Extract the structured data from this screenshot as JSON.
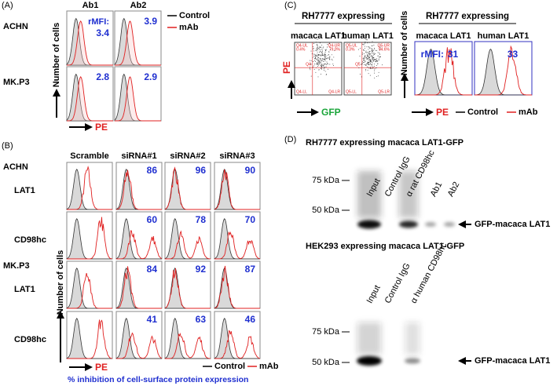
{
  "panel_a": {
    "label": "(A)",
    "columns": [
      "Ab1",
      "Ab2"
    ],
    "rows": [
      "ACHN",
      "MK.P3"
    ],
    "rmfi_label": "rMFI:",
    "values": [
      [
        "3.4",
        "3.9"
      ],
      [
        "2.8",
        "2.9"
      ]
    ],
    "y_axis": "Number of cells",
    "x_axis": "PE",
    "legend": [
      "Control",
      "mAb"
    ]
  },
  "panel_b": {
    "label": "(B)",
    "columns": [
      "Scramble",
      "siRNA#1",
      "siRNA#2",
      "siRNA#3"
    ],
    "groups": [
      {
        "name": "ACHN",
        "rows": [
          {
            "name": "LAT1",
            "values": [
              "86",
              "96",
              "90"
            ]
          },
          {
            "name": "CD98hc",
            "values": [
              "60",
              "78",
              "70"
            ]
          }
        ]
      },
      {
        "name": "MK.P3",
        "rows": [
          {
            "name": "LAT1",
            "values": [
              "84",
              "92",
              "87"
            ]
          },
          {
            "name": "CD98hc",
            "values": [
              "41",
              "63",
              "46"
            ]
          }
        ]
      }
    ],
    "y_axis": "Number of cells",
    "x_axis": "PE",
    "legend": [
      "Control",
      "mAb"
    ],
    "footnote": "% inhibition of cell-surface protein expression"
  },
  "panel_c": {
    "label": "(C)",
    "dot_plots": {
      "title": "RH7777 expressing",
      "columns": [
        "macaca LAT1",
        "human LAT1"
      ],
      "y_axis": "PE",
      "x_axis": "GFP",
      "plots": [
        {
          "gate": "Q4",
          "ul": "Q4-UL",
          "ul_pct": "0.4%",
          "ur": "Q4-UR",
          "ur_pct": "79.0%",
          "ll": "Q4-LL",
          "lr": "Q4-LR"
        },
        {
          "gate": "Q5",
          "ul": "Q5-UL",
          "ul_pct": "0.3%",
          "ur": "Q5-UR",
          "ur_pct": "94.6%",
          "ll": "Q5-LL",
          "lr": "Q5-LR"
        }
      ]
    },
    "histograms": {
      "title": "RH7777 expressing",
      "columns": [
        "macaca LAT1",
        "human LAT1"
      ],
      "rmfi_label": "rMFI:",
      "values": [
        "31",
        "33"
      ],
      "y_axis": "Number of cells",
      "x_axis": "PE",
      "legend": [
        "Control",
        "mAb"
      ]
    }
  },
  "panel_d": {
    "label": "(D)",
    "blots": [
      {
        "title": "RH7777 expressing macaca LAT1-GFP",
        "lanes": [
          "Input",
          "Control IgG",
          "α rat CD98hc",
          "Ab1",
          "Ab2"
        ],
        "markers": [
          "75 kDa",
          "50 kDa"
        ],
        "band": "GFP-macaca LAT1"
      },
      {
        "title": "HEK293 expressing macaca LAT1-GFP",
        "lanes": [
          "Input",
          "Control IgG",
          "α human CD98hc"
        ],
        "markers": [
          "75 kDa",
          "50 kDa"
        ],
        "band": "GFP-macaca LAT1"
      }
    ]
  }
}
